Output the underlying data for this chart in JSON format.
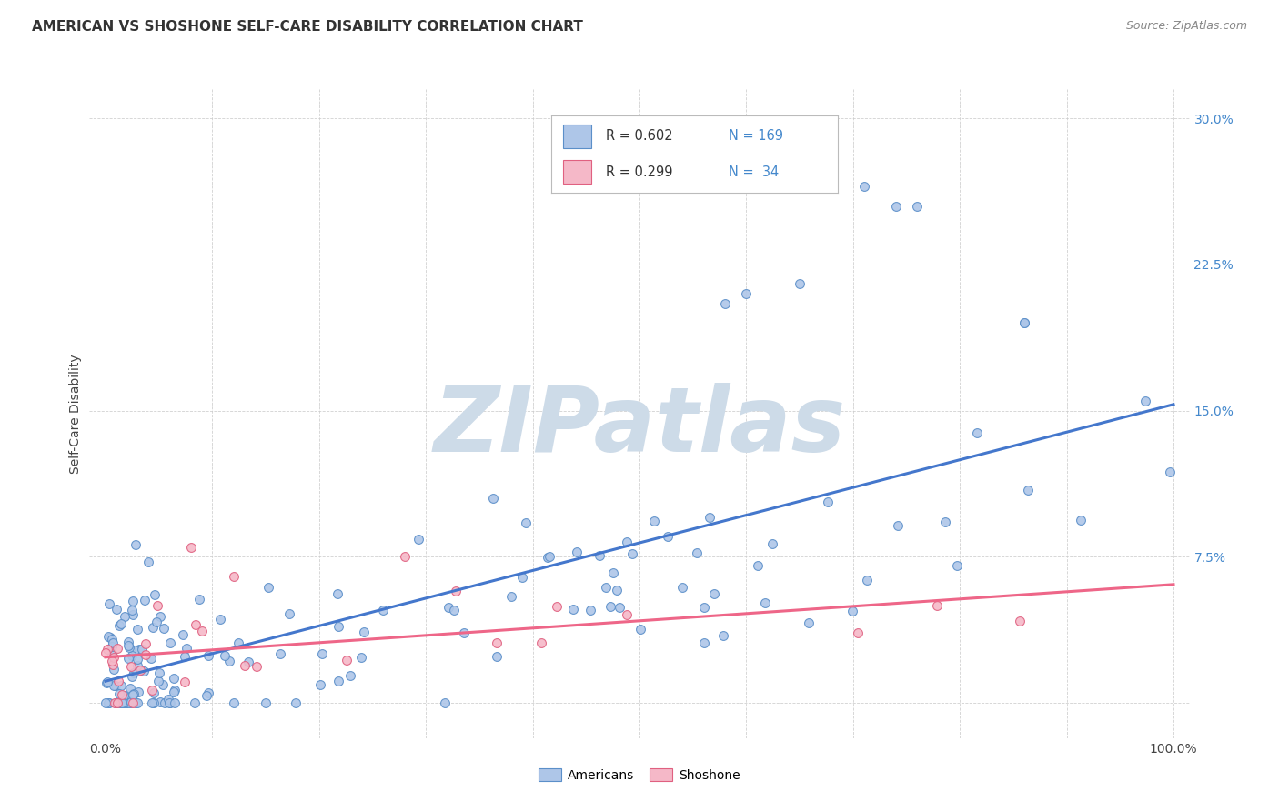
{
  "title": "AMERICAN VS SHOSHONE SELF-CARE DISABILITY CORRELATION CHART",
  "source": "Source: ZipAtlas.com",
  "ylabel": "Self-Care Disability",
  "americans_R": 0.602,
  "americans_N": 169,
  "shoshone_R": 0.299,
  "shoshone_N": 34,
  "scatter_color_americans": "#aec6e8",
  "scatter_edge_americans": "#5b8fc9",
  "scatter_color_shoshone": "#f5b8c8",
  "scatter_edge_shoshone": "#e06080",
  "line_color_americans": "#4477cc",
  "line_color_shoshone": "#ee6688",
  "background_color": "#ffffff",
  "watermark_color": "#cddbe8",
  "legend_labels": [
    "Americans",
    "Shoshone"
  ],
  "grid_color": "#cccccc",
  "ytick_color": "#4488cc",
  "title_color": "#333333",
  "source_color": "#888888"
}
